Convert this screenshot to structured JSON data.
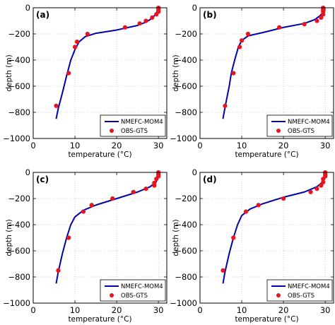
{
  "colors": {
    "model_line": "#0000b4",
    "obs_marker": "#e8141e",
    "axis": "#000000",
    "grid": "#b4b4b4"
  },
  "chart_data": [
    {
      "type": "line",
      "panel_label": "(a)",
      "xlabel": "temperature (°C)",
      "ylabel": "depth (m)",
      "xlim": [
        0,
        32
      ],
      "ylim": [
        -1000,
        0
      ],
      "xticks": [
        "0",
        "10",
        "20",
        "30"
      ],
      "yticks": [
        "0",
        "−200",
        "−400",
        "−600",
        "−800",
        "−1000"
      ],
      "grid": true,
      "legend_position": "bottom-right",
      "series": [
        {
          "name": "NMEFC-MOM4",
          "kind": "line",
          "points": [
            [
              5.5,
              -850
            ],
            [
              6,
              -770
            ],
            [
              7,
              -650
            ],
            [
              8,
              -520
            ],
            [
              9,
              -400
            ],
            [
              10,
              -320
            ],
            [
              11,
              -260
            ],
            [
              12.5,
              -220
            ],
            [
              15,
              -195
            ],
            [
              20,
              -170
            ],
            [
              25,
              -135
            ],
            [
              27,
              -110
            ],
            [
              28.5,
              -80
            ],
            [
              29.3,
              -50
            ],
            [
              29.8,
              -20
            ],
            [
              30,
              0
            ]
          ]
        },
        {
          "name": "OBS-GTS",
          "kind": "scatter",
          "points": [
            [
              5.5,
              -750
            ],
            [
              8.5,
              -500
            ],
            [
              10,
              -300
            ],
            [
              10.5,
              -260
            ],
            [
              13,
              -200
            ],
            [
              22,
              -150
            ],
            [
              25.5,
              -120
            ],
            [
              27,
              -100
            ],
            [
              28.5,
              -75
            ],
            [
              29.5,
              -50
            ],
            [
              30,
              -30
            ],
            [
              30,
              -20
            ],
            [
              30,
              -10
            ],
            [
              30,
              0
            ]
          ]
        }
      ]
    },
    {
      "type": "line",
      "panel_label": "(b)",
      "xlabel": "temperature (°C)",
      "ylabel": "depth (m)",
      "xlim": [
        0,
        32
      ],
      "ylim": [
        -1000,
        0
      ],
      "xticks": [
        "0",
        "10",
        "20",
        "30"
      ],
      "yticks": [
        "0",
        "−200",
        "−400",
        "−600",
        "−800",
        "−1000"
      ],
      "grid": true,
      "legend_position": "bottom-right",
      "series": [
        {
          "name": "NMEFC-MOM4",
          "kind": "line",
          "points": [
            [
              5.5,
              -850
            ],
            [
              6,
              -760
            ],
            [
              7,
              -600
            ],
            [
              7.5,
              -500
            ],
            [
              8.3,
              -400
            ],
            [
              9.2,
              -300
            ],
            [
              10,
              -250
            ],
            [
              11.5,
              -215
            ],
            [
              15,
              -190
            ],
            [
              20,
              -150
            ],
            [
              25,
              -120
            ],
            [
              27.5,
              -90
            ],
            [
              28.8,
              -60
            ],
            [
              29.5,
              -30
            ],
            [
              29.8,
              0
            ]
          ]
        },
        {
          "name": "OBS-GTS",
          "kind": "scatter",
          "points": [
            [
              6,
              -750
            ],
            [
              8,
              -500
            ],
            [
              9.5,
              -300
            ],
            [
              10,
              -250
            ],
            [
              11.5,
              -200
            ],
            [
              19,
              -150
            ],
            [
              25,
              -125
            ],
            [
              28,
              -100
            ],
            [
              29,
              -75
            ],
            [
              29.5,
              -50
            ],
            [
              29.5,
              -30
            ],
            [
              29.5,
              -20
            ],
            [
              29.5,
              -10
            ],
            [
              29.5,
              0
            ]
          ]
        }
      ]
    },
    {
      "type": "line",
      "panel_label": "(c)",
      "xlabel": "temperature (°C)",
      "ylabel": "depth (m)",
      "xlim": [
        0,
        32
      ],
      "ylim": [
        -1000,
        0
      ],
      "xticks": [
        "0",
        "10",
        "20",
        "30"
      ],
      "yticks": [
        "0",
        "−200",
        "−400",
        "−600",
        "−800",
        "−1000"
      ],
      "grid": true,
      "legend_position": "bottom-right",
      "series": [
        {
          "name": "NMEFC-MOM4",
          "kind": "line",
          "points": [
            [
              5.5,
              -850
            ],
            [
              6,
              -760
            ],
            [
              7,
              -620
            ],
            [
              8,
              -500
            ],
            [
              9,
              -400
            ],
            [
              10,
              -340
            ],
            [
              12,
              -290
            ],
            [
              15,
              -250
            ],
            [
              20,
              -200
            ],
            [
              25,
              -150
            ],
            [
              28,
              -110
            ],
            [
              29.5,
              -70
            ],
            [
              30,
              -30
            ],
            [
              30.2,
              0
            ]
          ]
        },
        {
          "name": "OBS-GTS",
          "kind": "scatter",
          "points": [
            [
              6,
              -750
            ],
            [
              8.5,
              -500
            ],
            [
              12,
              -300
            ],
            [
              14,
              -250
            ],
            [
              19,
              -200
            ],
            [
              24,
              -150
            ],
            [
              27,
              -125
            ],
            [
              29,
              -100
            ],
            [
              29,
              -80
            ],
            [
              29.5,
              -50
            ],
            [
              30,
              -30
            ],
            [
              30,
              -20
            ],
            [
              30,
              -10
            ],
            [
              30,
              0
            ]
          ]
        }
      ]
    },
    {
      "type": "line",
      "panel_label": "(d)",
      "xlabel": "temperature (°C)",
      "ylabel": "depth (m)",
      "xlim": [
        0,
        32
      ],
      "ylim": [
        -1000,
        0
      ],
      "xticks": [
        "0",
        "10",
        "20",
        "30"
      ],
      "yticks": [
        "0",
        "−200",
        "−400",
        "−600",
        "−800",
        "−1000"
      ],
      "grid": true,
      "legend_position": "bottom-right",
      "series": [
        {
          "name": "NMEFC-MOM4",
          "kind": "line",
          "points": [
            [
              5.5,
              -850
            ],
            [
              6,
              -760
            ],
            [
              7,
              -620
            ],
            [
              8,
              -500
            ],
            [
              9,
              -400
            ],
            [
              10,
              -330
            ],
            [
              12,
              -280
            ],
            [
              15,
              -240
            ],
            [
              20,
              -190
            ],
            [
              25,
              -150
            ],
            [
              28,
              -110
            ],
            [
              29.5,
              -70
            ],
            [
              30,
              -30
            ],
            [
              30.2,
              0
            ]
          ]
        },
        {
          "name": "OBS-GTS",
          "kind": "scatter",
          "points": [
            [
              5.5,
              -750
            ],
            [
              8,
              -500
            ],
            [
              11,
              -300
            ],
            [
              14,
              -250
            ],
            [
              20,
              -200
            ],
            [
              26.5,
              -150
            ],
            [
              28,
              -125
            ],
            [
              29,
              -100
            ],
            [
              29.5,
              -75
            ],
            [
              29.5,
              -50
            ],
            [
              30,
              -30
            ],
            [
              30,
              -20
            ],
            [
              30,
              -10
            ],
            [
              30,
              0
            ]
          ]
        }
      ]
    }
  ]
}
